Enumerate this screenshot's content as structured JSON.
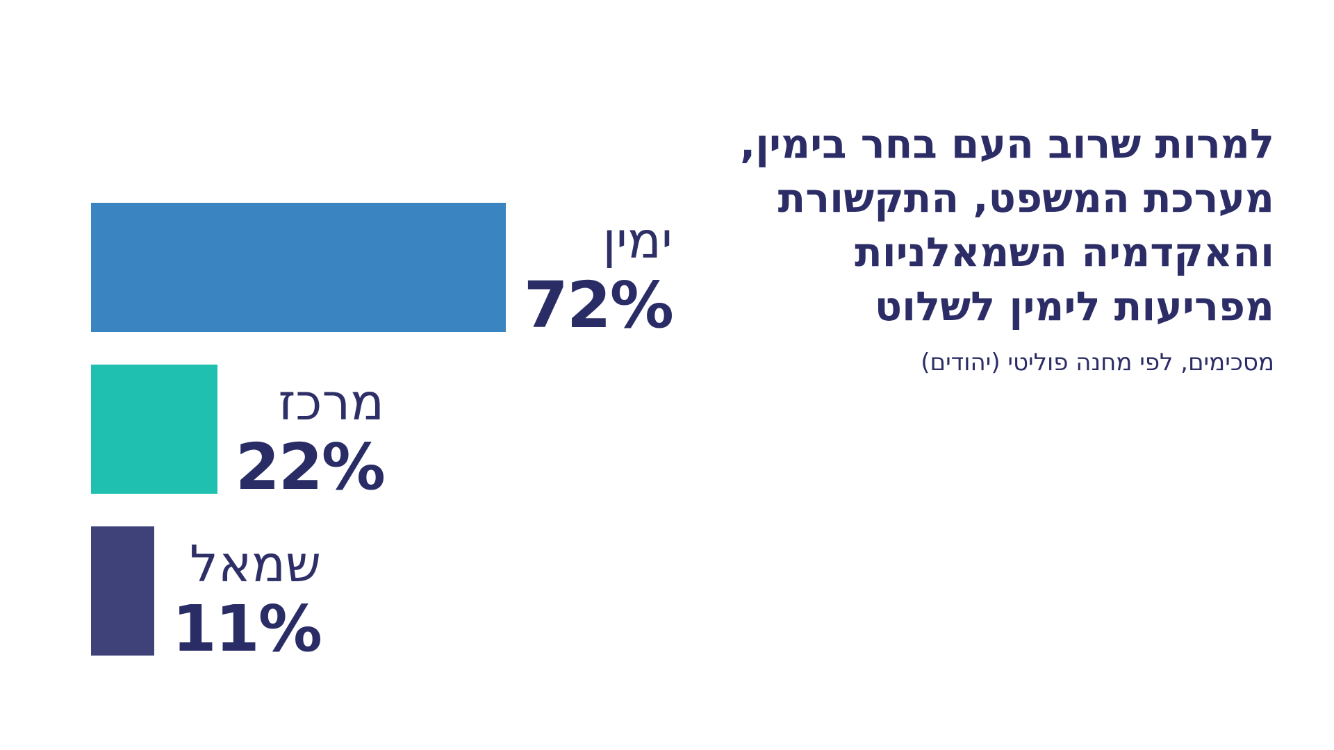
{
  "chart_data": {
    "type": "bar",
    "orientation": "horizontal",
    "title_lines": [
      "למרות שרוב העם בחר בימין,",
      "מערכת המשפט, התקשורת",
      "והאקדמיה השמאלניות",
      "מפריעות לימין לשלוט"
    ],
    "subtitle": "מסכימים, לפי מחנה פוליטי (יהודים)",
    "categories": [
      "ימין",
      "מרכז",
      "שמאל"
    ],
    "values": [
      72,
      22,
      11
    ],
    "value_labels": [
      "72%",
      "22%",
      "11%"
    ],
    "colors": [
      "#3a84c1",
      "#1fc0b0",
      "#3f4279"
    ],
    "xlim": [
      0,
      72
    ],
    "grid": false,
    "legend": false,
    "xlabel": "",
    "ylabel": ""
  }
}
